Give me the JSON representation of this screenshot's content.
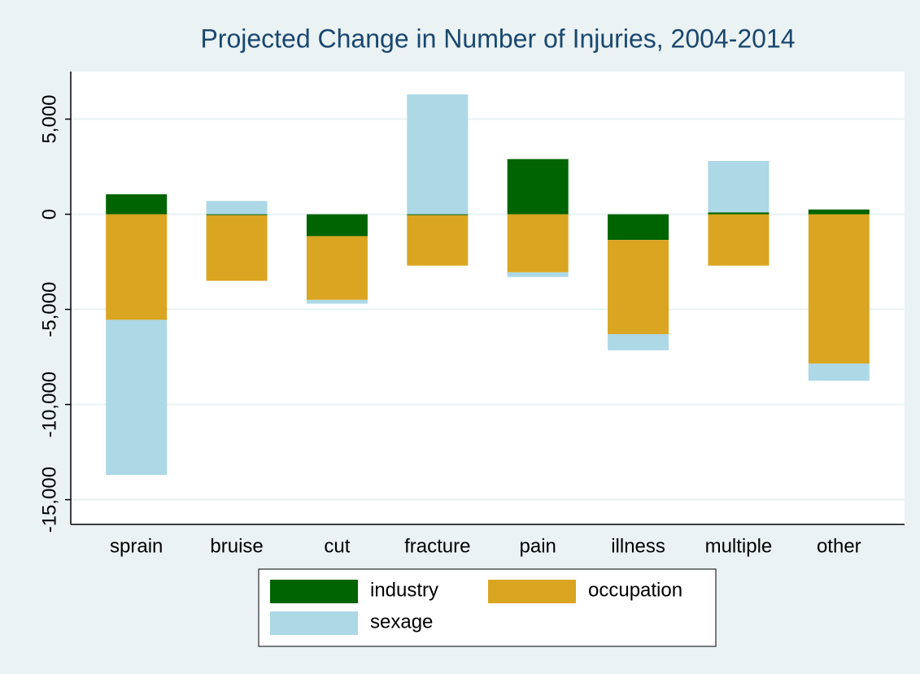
{
  "chart_data": {
    "type": "stacked_bar",
    "title": "Projected Change in Number of Injuries, 2004-2014",
    "categories": [
      "sprain",
      "bruise",
      "cut",
      "fracture",
      "pain",
      "illness",
      "multiple",
      "other"
    ],
    "series": [
      {
        "name": "industry",
        "color": "#006400",
        "values": [
          1050,
          -50,
          -1150,
          -50,
          2900,
          -1350,
          100,
          250
        ]
      },
      {
        "name": "occupation",
        "color": "#daa520",
        "values": [
          -5550,
          -3450,
          -3350,
          -2650,
          -3050,
          -4950,
          -2700,
          -7850
        ]
      },
      {
        "name": "sexage",
        "color": "#add8e6",
        "values": [
          -8150,
          700,
          -200,
          6300,
          -250,
          -850,
          2700,
          -900
        ]
      }
    ],
    "ylim": [
      -16300,
      7500
    ],
    "yticks": [
      {
        "value": -15000,
        "label": "-15,000"
      },
      {
        "value": -10000,
        "label": "-10,000"
      },
      {
        "value": -5000,
        "label": "-5,000"
      },
      0,
      {
        "value": 5000,
        "label": "5,000"
      }
    ],
    "grid": true
  }
}
